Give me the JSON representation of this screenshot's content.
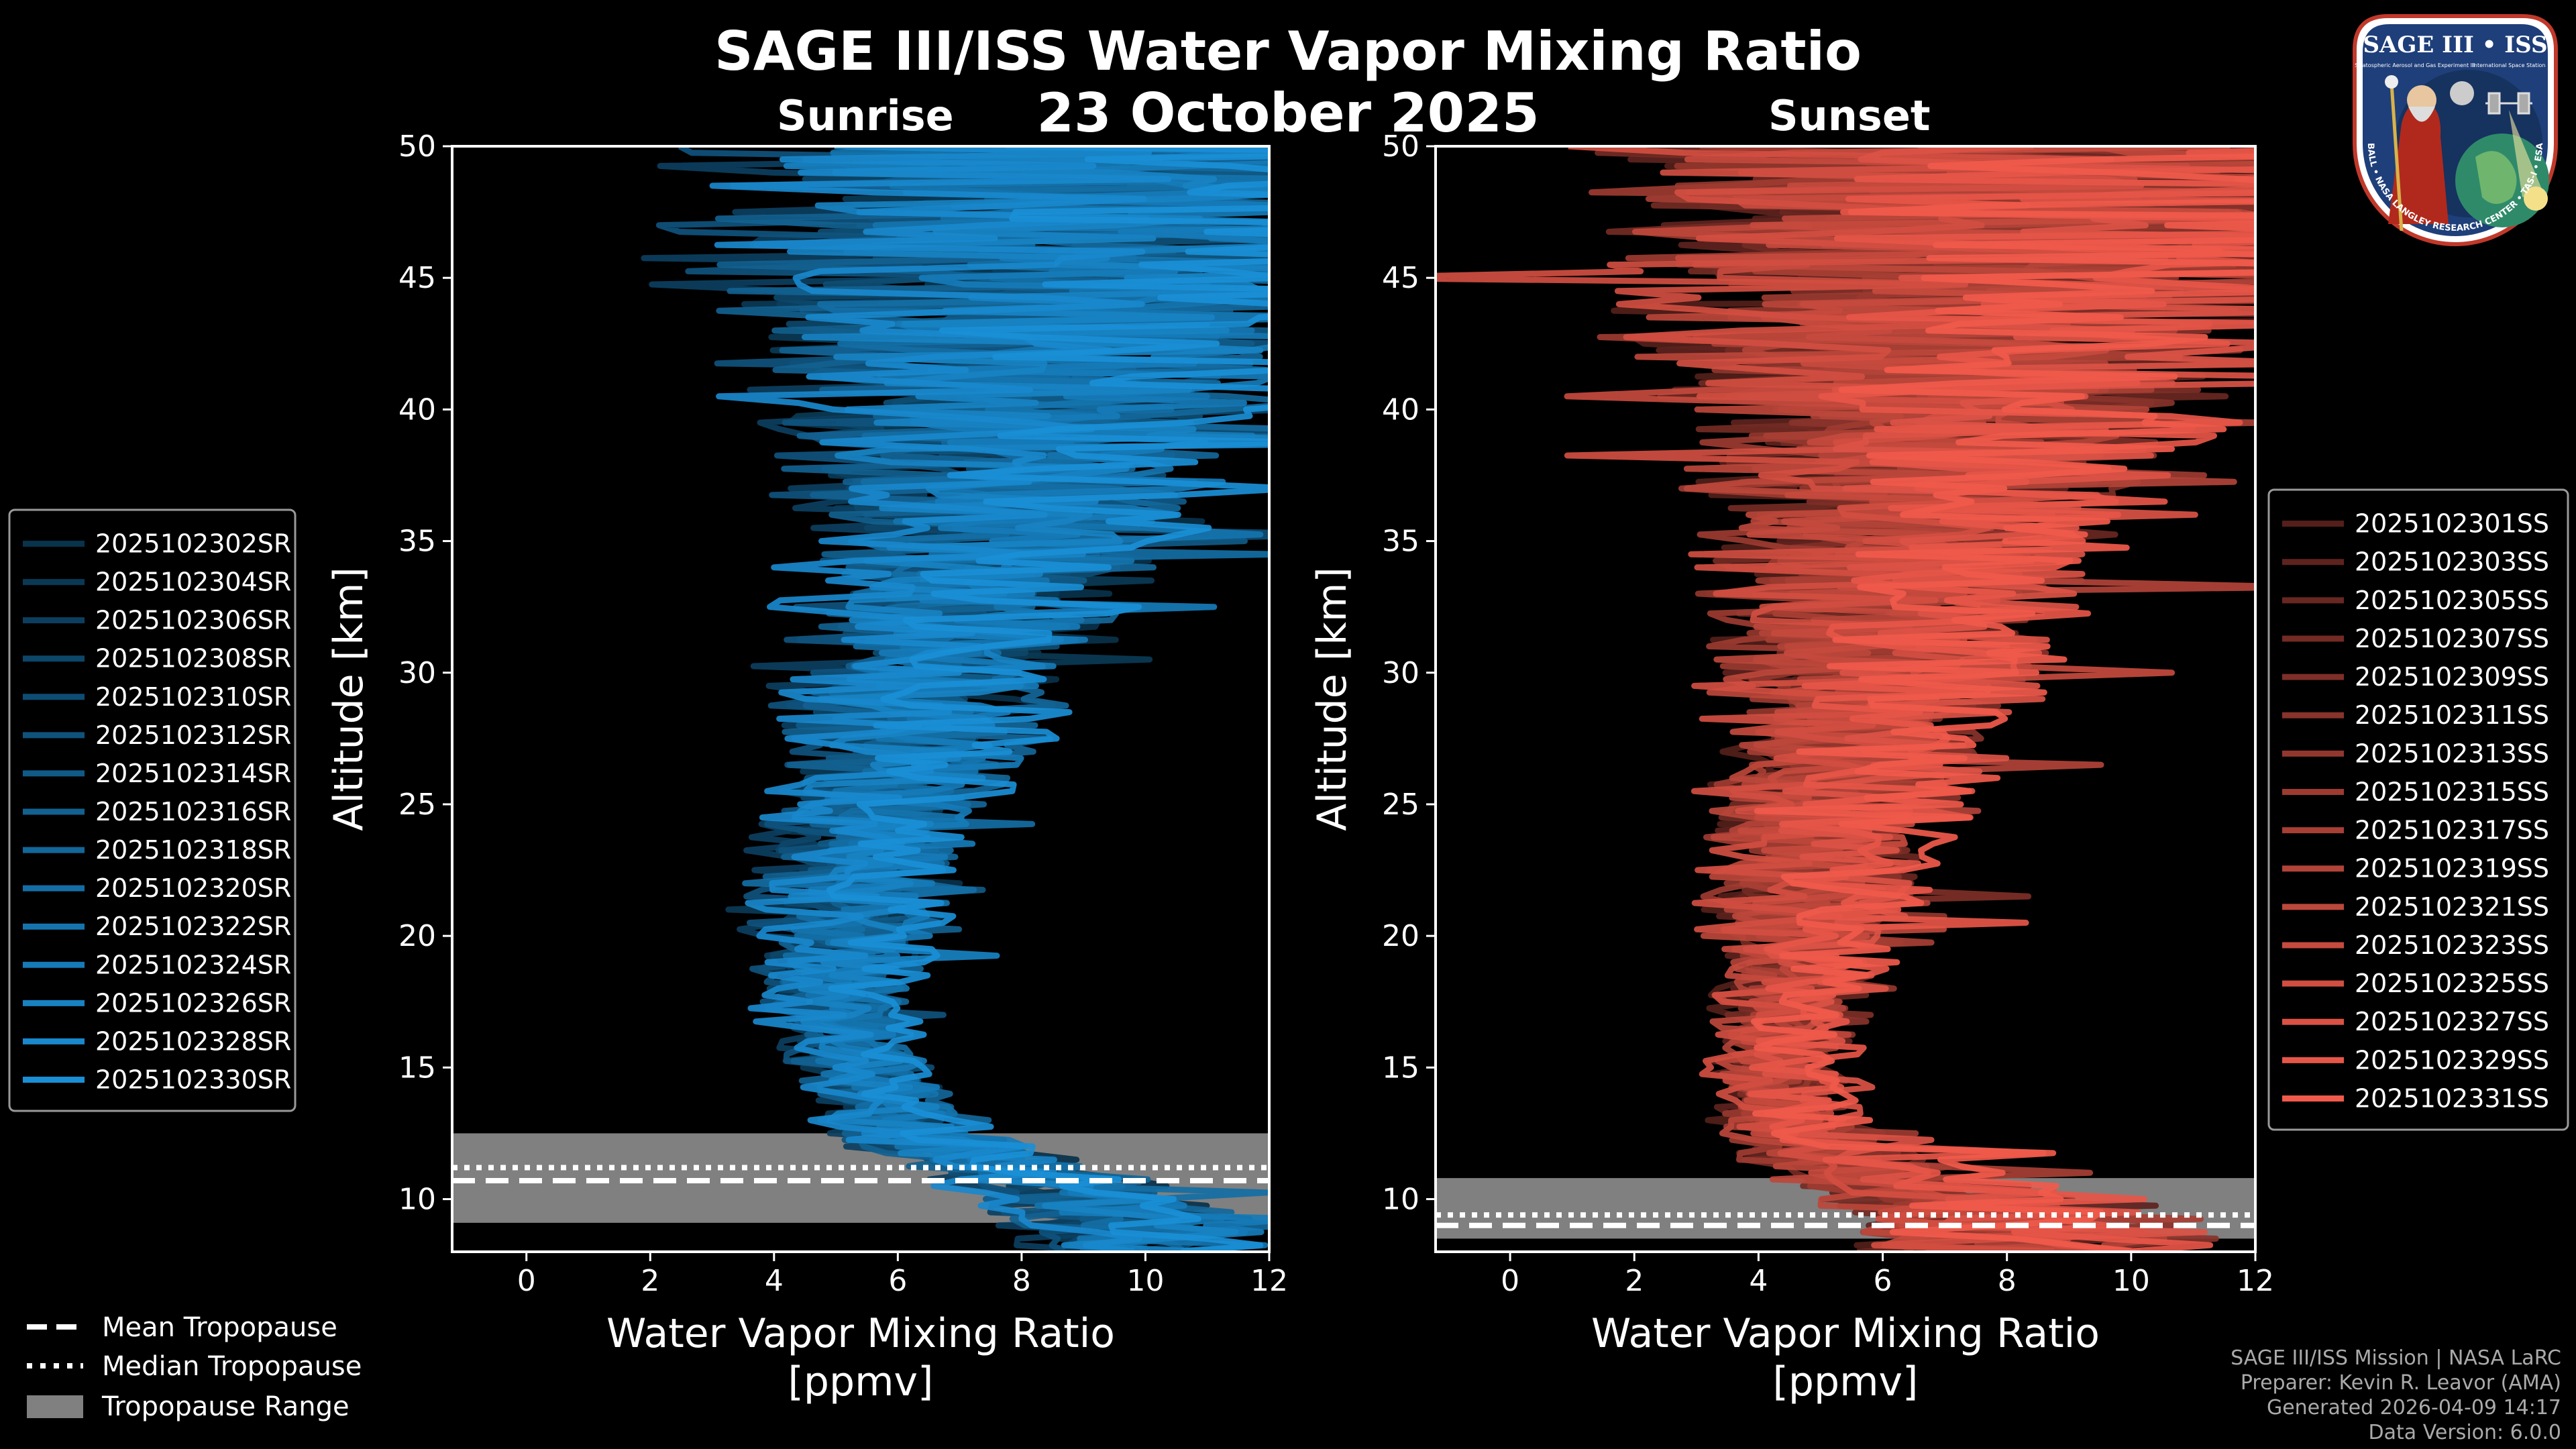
{
  "header": {
    "title": "SAGE III/ISS Water Vapor Mixing Ratio",
    "date": "23 October 2025"
  },
  "credits": {
    "line1": "SAGE III/ISS Mission | NASA LaRC",
    "line2": "Preparer: Kevin R. Leavor (AMA)",
    "line3": "Generated 2026-04-09 14:17",
    "line4": "Data Version: 6.0.0"
  },
  "badge": {
    "top_text": "SAGE III • ISS",
    "small_text1": "Stratospheric Aerosol and Gas Experiment III",
    "small_text2": "International Space Station",
    "ring_text": "BALL • NASA LANGLEY RESEARCH CENTER • TAS-I • ESA"
  },
  "colors": {
    "background": "#000000",
    "sunrise_base": "#1a8fd6",
    "sunset_base": "#f05a4b",
    "tropopause_range": "#808080"
  },
  "chart_data": [
    {
      "id": "sunrise",
      "type": "line",
      "title": "Sunrise",
      "xlabel": "Water Vapor Mixing Ratio\n[ppmv]",
      "ylabel": "Altitude [km]",
      "xlim": [
        -1.2,
        12
      ],
      "ylim": [
        8,
        50
      ],
      "xticks": [
        0,
        2,
        4,
        6,
        8,
        10,
        12
      ],
      "yticks": [
        10,
        15,
        20,
        25,
        30,
        35,
        40,
        45,
        50
      ],
      "legend_placement": "left",
      "series": [
        {
          "name": "2025102302SR"
        },
        {
          "name": "2025102304SR"
        },
        {
          "name": "2025102306SR"
        },
        {
          "name": "2025102308SR"
        },
        {
          "name": "2025102310SR"
        },
        {
          "name": "2025102312SR"
        },
        {
          "name": "2025102314SR"
        },
        {
          "name": "2025102316SR"
        },
        {
          "name": "2025102318SR"
        },
        {
          "name": "2025102320SR"
        },
        {
          "name": "2025102322SR"
        },
        {
          "name": "2025102324SR"
        },
        {
          "name": "2025102326SR"
        },
        {
          "name": "2025102328SR"
        },
        {
          "name": "2025102330SR"
        }
      ],
      "profile_envelope": {
        "altitude_km": [
          9,
          11,
          12.5,
          14,
          16,
          18,
          20,
          22,
          24,
          26,
          28,
          30,
          32,
          34,
          36,
          38,
          40,
          42,
          44,
          46,
          48,
          50
        ],
        "mean_ppmv": [
          10,
          8,
          6.2,
          5.6,
          5.2,
          5.0,
          5.1,
          5.3,
          5.6,
          5.9,
          6.2,
          6.5,
          6.9,
          7.3,
          7.6,
          7.8,
          8.0,
          8.2,
          8.3,
          8.4,
          8.5,
          8.5
        ],
        "spread_ppmv": [
          1.5,
          1.2,
          1.0,
          0.9,
          0.9,
          1.0,
          1.1,
          1.2,
          1.3,
          1.5,
          1.6,
          1.8,
          2.0,
          2.2,
          2.5,
          2.8,
          3.2,
          3.6,
          4.0,
          4.2,
          4.4,
          4.5
        ]
      },
      "tropopause": {
        "mean_km": 10.7,
        "median_km": 11.2,
        "range_km": [
          9.1,
          12.5
        ]
      }
    },
    {
      "id": "sunset",
      "type": "line",
      "title": "Sunset",
      "xlabel": "Water Vapor Mixing Ratio\n[ppmv]",
      "ylabel": "Altitude [km]",
      "xlim": [
        -1.2,
        12
      ],
      "ylim": [
        8,
        50
      ],
      "xticks": [
        0,
        2,
        4,
        6,
        8,
        10,
        12
      ],
      "yticks": [
        10,
        15,
        20,
        25,
        30,
        35,
        40,
        45,
        50
      ],
      "legend_placement": "right",
      "series": [
        {
          "name": "2025102301SS"
        },
        {
          "name": "2025102303SS"
        },
        {
          "name": "2025102305SS"
        },
        {
          "name": "2025102307SS"
        },
        {
          "name": "2025102309SS"
        },
        {
          "name": "2025102311SS"
        },
        {
          "name": "2025102313SS"
        },
        {
          "name": "2025102315SS"
        },
        {
          "name": "2025102317SS"
        },
        {
          "name": "2025102319SS"
        },
        {
          "name": "2025102321SS"
        },
        {
          "name": "2025102323SS"
        },
        {
          "name": "2025102325SS"
        },
        {
          "name": "2025102327SS"
        },
        {
          "name": "2025102329SS"
        },
        {
          "name": "2025102331SS"
        }
      ],
      "profile_envelope": {
        "altitude_km": [
          8.5,
          10,
          11.5,
          13,
          15,
          17,
          19,
          21,
          23,
          25,
          27,
          29,
          31,
          33,
          35,
          37,
          39,
          41,
          43,
          45,
          47,
          50
        ],
        "mean_ppmv": [
          9,
          7.5,
          5.5,
          4.6,
          4.5,
          4.6,
          4.8,
          5.0,
          5.2,
          5.5,
          5.8,
          6.1,
          6.5,
          6.8,
          7.0,
          7.2,
          7.5,
          7.8,
          8.2,
          8.5,
          8.8,
          9.0
        ],
        "spread_ppmv": [
          2.5,
          1.8,
          1.2,
          1.0,
          0.9,
          1.0,
          1.1,
          1.3,
          1.4,
          1.6,
          1.8,
          2.0,
          2.2,
          2.4,
          2.6,
          2.9,
          3.3,
          3.8,
          4.3,
          4.7,
          5.0,
          5.2
        ]
      },
      "tropopause": {
        "mean_km": 9.0,
        "median_km": 9.4,
        "range_km": [
          8.5,
          10.8
        ]
      }
    }
  ],
  "bottom_legend": {
    "mean_label": "Mean Tropopause",
    "median_label": "Median Tropopause",
    "range_label": "Tropopause Range"
  }
}
